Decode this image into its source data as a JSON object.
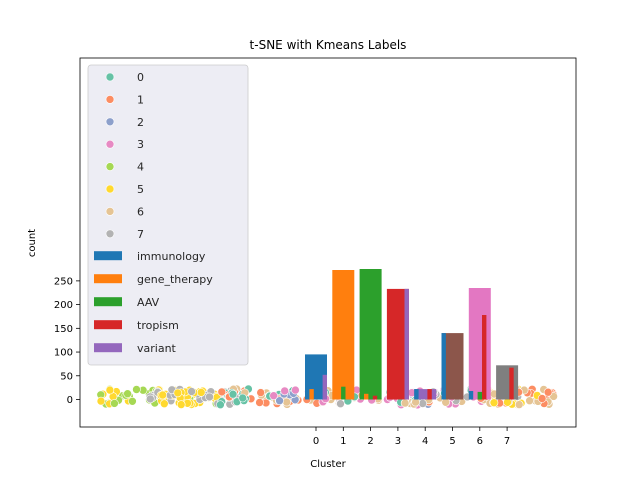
{
  "chart_data": {
    "type": "bar",
    "title": "t-SNE with Kmeans Labels",
    "xlabel": "Cluster",
    "ylabel": "count",
    "ylim": [
      -25,
      290
    ],
    "yticks": [
      0,
      50,
      100,
      150,
      200,
      250
    ],
    "categories": [
      "0",
      "1",
      "2",
      "3",
      "4",
      "5",
      "6",
      "7"
    ],
    "totals": {
      "values": [
        95,
        273,
        275,
        233,
        22,
        140,
        235,
        72
      ],
      "colors": [
        "#1f77b4",
        "#ff7f0e",
        "#2ca02c",
        "#d62728",
        "#9467bd",
        "#8c564b",
        "#e377c2",
        "#7f7f7f"
      ]
    },
    "series": [
      {
        "name": "immunology",
        "color": "#1f77b4",
        "values": [
          0,
          0,
          0,
          0,
          22,
          140,
          18,
          0
        ]
      },
      {
        "name": "gene_therapy",
        "color": "#ff7f0e",
        "values": [
          22,
          0,
          12,
          0,
          0,
          0,
          0,
          0
        ]
      },
      {
        "name": "AAV",
        "color": "#2ca02c",
        "values": [
          0,
          27,
          0,
          0,
          0,
          0,
          16,
          0
        ]
      },
      {
        "name": "tropism",
        "color": "#d62728",
        "values": [
          0,
          0,
          8,
          0,
          22,
          0,
          178,
          67
        ]
      },
      {
        "name": "variant",
        "color": "#9467bd",
        "values": [
          52,
          0,
          0,
          233,
          0,
          0,
          0,
          0
        ]
      }
    ],
    "scatter_legend": [
      {
        "label": "0",
        "color": "#66c2a5"
      },
      {
        "label": "1",
        "color": "#fc8d62"
      },
      {
        "label": "2",
        "color": "#8da0cb"
      },
      {
        "label": "3",
        "color": "#e78ac3"
      },
      {
        "label": "4",
        "color": "#a6d854"
      },
      {
        "label": "5",
        "color": "#ffd92f"
      },
      {
        "label": "6",
        "color": "#e5c494"
      },
      {
        "label": "7",
        "color": "#b3b3b3"
      }
    ],
    "legend_position": "upper-left",
    "grid": false
  }
}
